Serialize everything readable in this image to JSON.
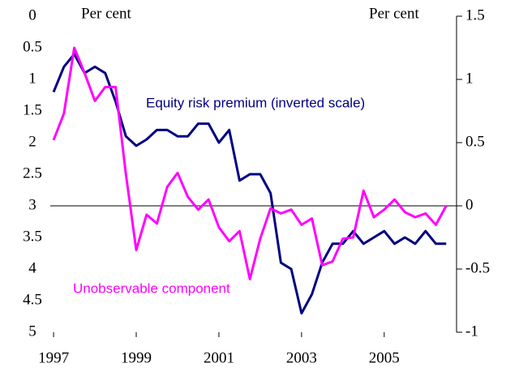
{
  "chart_data": {
    "type": "line",
    "y_axis_label": "Per cent",
    "y2_axis_label": "Per cent",
    "x": [
      1997,
      1997.25,
      1997.5,
      1997.75,
      1998,
      1998.25,
      1998.5,
      1998.75,
      1999,
      1999.25,
      1999.5,
      1999.75,
      2000,
      2000.25,
      2000.5,
      2000.75,
      2001,
      2001.25,
      2001.5,
      2001.75,
      2002,
      2002.25,
      2002.5,
      2002.75,
      2003,
      2003.25,
      2003.5,
      2003.75,
      2004,
      2004.25,
      2004.5,
      2004.75,
      2005,
      2005.25,
      2005.5,
      2005.75,
      2006,
      2006.25,
      2006.5
    ],
    "series": [
      {
        "name": "Equity risk premium (inverted scale)",
        "color": "#000080",
        "axis": "y",
        "values": [
          1.2,
          0.8,
          0.6,
          0.9,
          0.8,
          0.9,
          1.35,
          1.9,
          2.05,
          1.95,
          1.8,
          1.8,
          1.9,
          1.9,
          1.7,
          1.7,
          2.0,
          1.8,
          2.6,
          2.5,
          2.5,
          2.8,
          3.9,
          4.0,
          4.7,
          4.4,
          3.9,
          3.6,
          3.6,
          3.4,
          3.6,
          3.5,
          3.4,
          3.6,
          3.5,
          3.6,
          3.4,
          3.6,
          3.6
        ]
      },
      {
        "name": "Unobservable component",
        "color": "#ff00ff",
        "axis": "y2",
        "values": [
          0.52,
          0.73,
          1.25,
          1.05,
          0.83,
          0.94,
          0.94,
          0.25,
          -0.35,
          -0.07,
          -0.14,
          0.15,
          0.26,
          0.07,
          -0.03,
          0.05,
          -0.17,
          -0.28,
          -0.2,
          -0.58,
          -0.26,
          -0.02,
          -0.06,
          -0.03,
          -0.15,
          -0.1,
          -0.47,
          -0.44,
          -0.26,
          -0.25,
          0.12,
          -0.09,
          -0.03,
          0.05,
          -0.05,
          -0.09,
          -0.06,
          -0.15,
          0
        ]
      }
    ],
    "xlim": [
      1996.92,
      2006.75
    ],
    "xticks": [
      1997,
      1999,
      2001,
      2003,
      2005
    ],
    "ylim": [
      0,
      5
    ],
    "y_inverted": true,
    "yticks": [
      0,
      0.5,
      1,
      1.5,
      2,
      2.5,
      3,
      3.5,
      4,
      4.5,
      5
    ],
    "y2lim": [
      -1,
      1.5
    ],
    "y2ticks": [
      -1,
      -0.5,
      0,
      0.5,
      1,
      1.5
    ]
  }
}
